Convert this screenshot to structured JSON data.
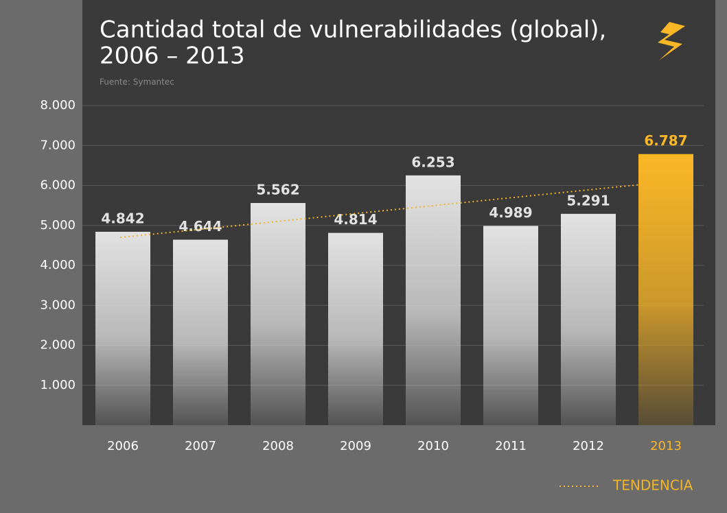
{
  "chart_data": {
    "type": "bar",
    "title": [
      "Cantidad total de vulnerabilidades (global),",
      "2006 – 2013"
    ],
    "subtitle": "Fuente: Symantec",
    "categories": [
      "2006",
      "2007",
      "2008",
      "2009",
      "2010",
      "2011",
      "2012",
      "2013"
    ],
    "values": [
      4842,
      4644,
      5562,
      4814,
      6253,
      4989,
      5291,
      6787
    ],
    "value_labels": [
      "4.842",
      "4.644",
      "5.562",
      "4.814",
      "6.253",
      "4.989",
      "5.291",
      "6.787"
    ],
    "colors": [
      "#e2e2e2",
      "#e2e2e2",
      "#e2e2e2",
      "#e2e2e2",
      "#e2e2e2",
      "#e2e2e2",
      "#e2e2e2",
      "#fbb726"
    ],
    "ylim": [
      0,
      8000
    ],
    "yticks": [
      {
        "value": 1000,
        "label": "1.000"
      },
      {
        "value": 2000,
        "label": "2.000"
      },
      {
        "value": 3000,
        "label": "3.000"
      },
      {
        "value": 4000,
        "label": "4.000"
      },
      {
        "value": 5000,
        "label": "5.000"
      },
      {
        "value": 6000,
        "label": "6.000"
      },
      {
        "value": 7000,
        "label": "7.000"
      },
      {
        "value": 8000,
        "label": "8.000"
      }
    ],
    "grid": true,
    "trend": {
      "label": "TENDENCIA",
      "color": "#f2b525"
    }
  }
}
